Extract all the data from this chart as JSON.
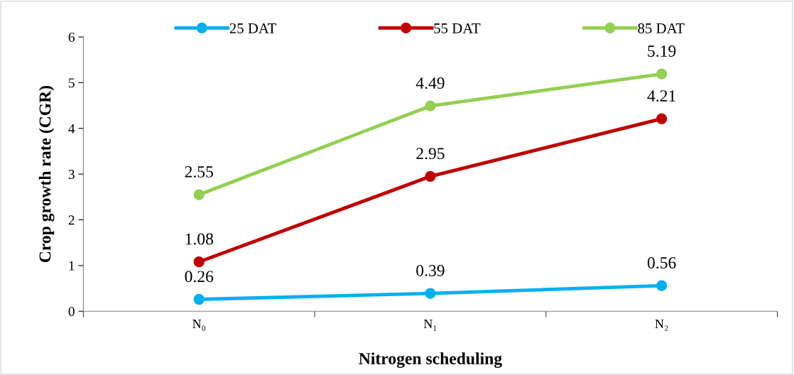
{
  "chart_data": {
    "type": "line",
    "xlabel": "Nitrogen scheduling",
    "ylabel": "Crop growth rate (CGR)",
    "categories": [
      "N₀",
      "N₁",
      "N₂"
    ],
    "series": [
      {
        "name": "25 DAT",
        "color": "#00b0f0",
        "values": [
          0.26,
          0.39,
          0.56
        ]
      },
      {
        "name": "55 DAT",
        "color": "#c00000",
        "values": [
          1.08,
          2.95,
          4.21
        ]
      },
      {
        "name": "85 DAT",
        "color": "#92d050",
        "values": [
          2.55,
          4.49,
          5.19
        ]
      }
    ],
    "ylim": [
      0,
      6
    ],
    "yticks": [
      0,
      1,
      2,
      3,
      4,
      5,
      6
    ],
    "grid": false,
    "legend": "top",
    "marker": "circle",
    "line_style": "solid",
    "data_labels": true
  }
}
